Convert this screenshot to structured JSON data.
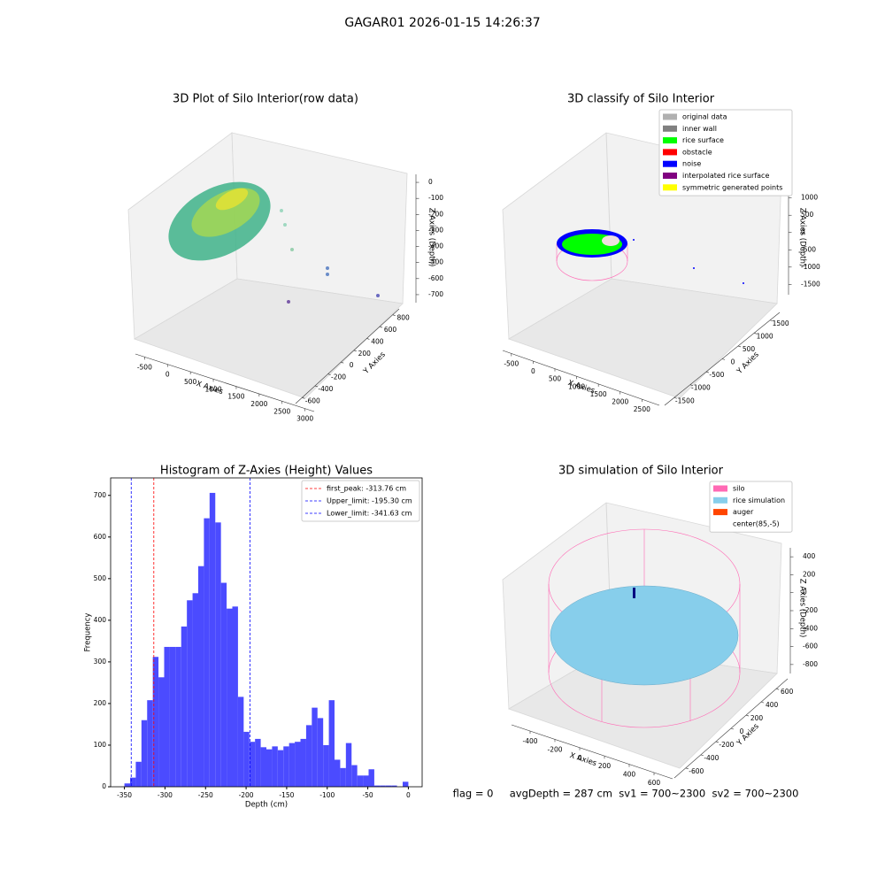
{
  "title": "GAGAR01 2026-01-15 14:26:37",
  "footer": "flag = 0     avgDepth = 287 cm  sv1 = 700~2300  sv2 = 700~2300",
  "chart_data": [
    {
      "type": "scatter3d",
      "title": "3D Plot of Silo Interior(row data)",
      "x_label": "X Axies",
      "y_label": "Y Axies",
      "z_label": "Z Axies (Depth)",
      "xlim": [
        -700,
        3200
      ],
      "xticks": [
        -500,
        0,
        500,
        1000,
        1500,
        2000,
        2500,
        3000
      ],
      "ylim": [
        -700,
        900
      ],
      "yticks": [
        -600,
        -400,
        -200,
        0,
        200,
        400,
        600,
        800
      ],
      "zlim": [
        -750,
        50
      ],
      "zticks": [
        0,
        -100,
        -200,
        -300,
        -400,
        -500,
        -600,
        -700
      ]
    },
    {
      "type": "scatter3d",
      "title": "3D classify of Silo Interior",
      "x_label": "X Axies",
      "y_label": "Y Axies",
      "z_label": "Z Axies (Depth)",
      "xlim": [
        -700,
        2900
      ],
      "xticks": [
        -500,
        0,
        500,
        1000,
        1500,
        2000,
        2500
      ],
      "ylim": [
        -1800,
        1800
      ],
      "yticks": [
        -1500,
        -1000,
        -500,
        0,
        500,
        1000,
        1500
      ],
      "zlim": [
        -1800,
        1300
      ],
      "zticks": [
        1000,
        500,
        0,
        -500,
        -1000,
        -1500
      ],
      "legend": [
        {
          "name": "original data",
          "color": "#b0b0b0"
        },
        {
          "name": "inner wall",
          "color": "#808080"
        },
        {
          "name": "rice surface",
          "color": "#00ff00"
        },
        {
          "name": "obstacle",
          "color": "#ff0000"
        },
        {
          "name": "noise",
          "color": "#0000ff"
        },
        {
          "name": "interpolated rice surface",
          "color": "#800080"
        },
        {
          "name": "symmetric generated points",
          "color": "#ffff00"
        }
      ]
    },
    {
      "type": "histogram",
      "title": "Histogram of Z-Axies (Height) Values",
      "x_label": "Depth (cm)",
      "y_label": "Frequency",
      "color": "#4b4bff",
      "bins": [
        -350,
        -343,
        -336,
        -329,
        -322,
        -315,
        -308,
        -301,
        -294,
        -287,
        -280,
        -273,
        -266,
        -259,
        -252,
        -245,
        -238,
        -231,
        -224,
        -217,
        -210,
        -203,
        -196,
        -189,
        -182,
        -175,
        -168,
        -161,
        -154,
        -147,
        -140,
        -133,
        -126,
        -119,
        -112,
        -105,
        -98,
        -91,
        -84,
        -77,
        -70,
        -63,
        -56,
        -49,
        -42,
        -35,
        -28,
        -21,
        -14,
        -7,
        0
      ],
      "values": [
        8,
        22,
        60,
        160,
        208,
        312,
        263,
        336,
        336,
        336,
        385,
        448,
        465,
        530,
        645,
        706,
        635,
        490,
        428,
        433,
        216,
        132,
        108,
        115,
        95,
        90,
        97,
        88,
        97,
        105,
        108,
        115,
        148,
        190,
        165,
        100,
        208,
        65,
        45,
        105,
        52,
        27,
        27,
        42,
        3,
        3,
        3,
        3,
        0,
        12
      ],
      "xlim": [
        -367,
        17
      ],
      "xticks": [
        -350,
        -300,
        -250,
        -200,
        -150,
        -100,
        -50,
        0
      ],
      "ylim": [
        0,
        742
      ],
      "yticks": [
        0,
        100,
        200,
        300,
        400,
        500,
        600,
        700
      ],
      "lines": [
        {
          "name": "first_peak: -313.76 cm",
          "value": -313.76,
          "color": "#ff0000"
        },
        {
          "name": "Upper_limit: -195.30 cm",
          "value": -195.3,
          "color": "#0000ff"
        },
        {
          "name": "Lower_limit: -341.63 cm",
          "value": -341.63,
          "color": "#0000ff"
        }
      ]
    },
    {
      "type": "surface3d",
      "title": "3D simulation of Silo Interior",
      "x_label": "X Axies",
      "y_label": "Y Axies",
      "z_label": "Z Axies (Depth)",
      "xlim": [
        -550,
        750
      ],
      "xticks": [
        -400,
        -200,
        0,
        200,
        400,
        600
      ],
      "ylim": [
        -750,
        750
      ],
      "yticks": [
        -600,
        -400,
        -200,
        0,
        200,
        400,
        600
      ],
      "zlim": [
        -900,
        500
      ],
      "zticks": [
        400,
        200,
        0,
        -200,
        -400,
        -600,
        -800
      ],
      "legend": [
        {
          "name": "silo",
          "color": "#ff69b4"
        },
        {
          "name": "rice simulation",
          "color": "#87ceeb"
        },
        {
          "name": "auger",
          "color": "#ff4500"
        },
        {
          "name": "center(85,-5)",
          "color": "#ffffff"
        }
      ]
    }
  ]
}
